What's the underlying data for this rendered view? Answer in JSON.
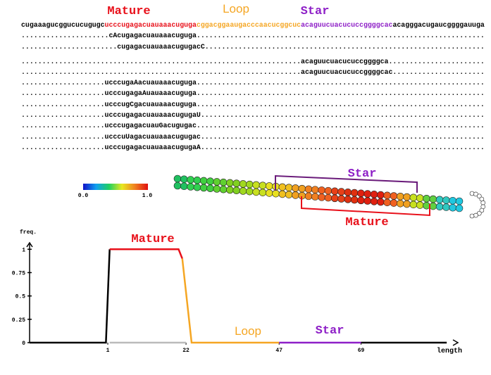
{
  "sequence": {
    "labels": {
      "mature": "Mature",
      "loop": "Loop",
      "star": "Star"
    },
    "segments": [
      {
        "text": "cugaaagucggucucugugc",
        "color": "#000000"
      },
      {
        "text": "ucccugagacuauaaacuguga",
        "color": "#e8101a"
      },
      {
        "text": "cggacggaaugacccaacucggcuc",
        "color": "#f5a623"
      },
      {
        "text": "acaguucuacucuccggggcac",
        "color": "#8e1fc7"
      },
      {
        "text": "acagggacugaucggggauuga",
        "color": "#000000"
      }
    ],
    "reads": [
      ".....................cAcugagacuauaaacuguga.....................................................................",
      ".......................cugagacuauaaacugugacC...................................................................",
      "...................................................................acaguucuacucuccggggca.......................",
      "...................................................................acaguucuacucuccggggcac......................",
      "....................ucccugaAacuauaaacuguga.....................................................................",
      "....................ucccugagaAuauaaacuguga.....................................................................",
      "....................ucccugCgacuauaaacuguga.....................................................................",
      "....................ucccugagacuauaaacugugaU....................................................................",
      "....................ucccugagacuauGacugugac.....................................................................",
      "....................ucccuUagacuauaaacugugac....................................................................",
      "....................ucccugagacuauaaacugugaA...................................................................."
    ]
  },
  "colorbar": {
    "min_label": "0.0",
    "max_label": "1.0"
  },
  "structure": {
    "star_label": "Star",
    "mature_label": "Mature"
  },
  "chart_data": {
    "type": "line",
    "y_label": "freq.",
    "x_label": "length",
    "labels": {
      "mature": "Mature",
      "loop": "Loop",
      "star": "Star"
    },
    "xlim": [
      -20,
      95
    ],
    "ylim": [
      0,
      1.07
    ],
    "xticks": [
      1,
      22,
      47,
      69
    ],
    "yticks": [
      0,
      0.25,
      0.5,
      0.75,
      1
    ],
    "series": [
      {
        "color": "#bbbbbb",
        "x": [
          1.5,
          22
        ],
        "values": [
          0,
          0
        ]
      },
      {
        "color": "#000000",
        "x": [
          -20,
          0.5,
          1.5
        ],
        "values": [
          0,
          0,
          1
        ]
      },
      {
        "color": "#e8101a",
        "x": [
          1.5,
          20,
          21
        ],
        "values": [
          1,
          1,
          0.9
        ]
      },
      {
        "color": "#f5a623",
        "x": [
          21,
          23.5,
          47
        ],
        "values": [
          0.9,
          0,
          0
        ]
      },
      {
        "color": "#8e1fc7",
        "x": [
          47,
          69
        ],
        "values": [
          0,
          0
        ]
      },
      {
        "color": "#000000",
        "x": [
          69,
          92
        ],
        "values": [
          0,
          0
        ]
      }
    ]
  }
}
